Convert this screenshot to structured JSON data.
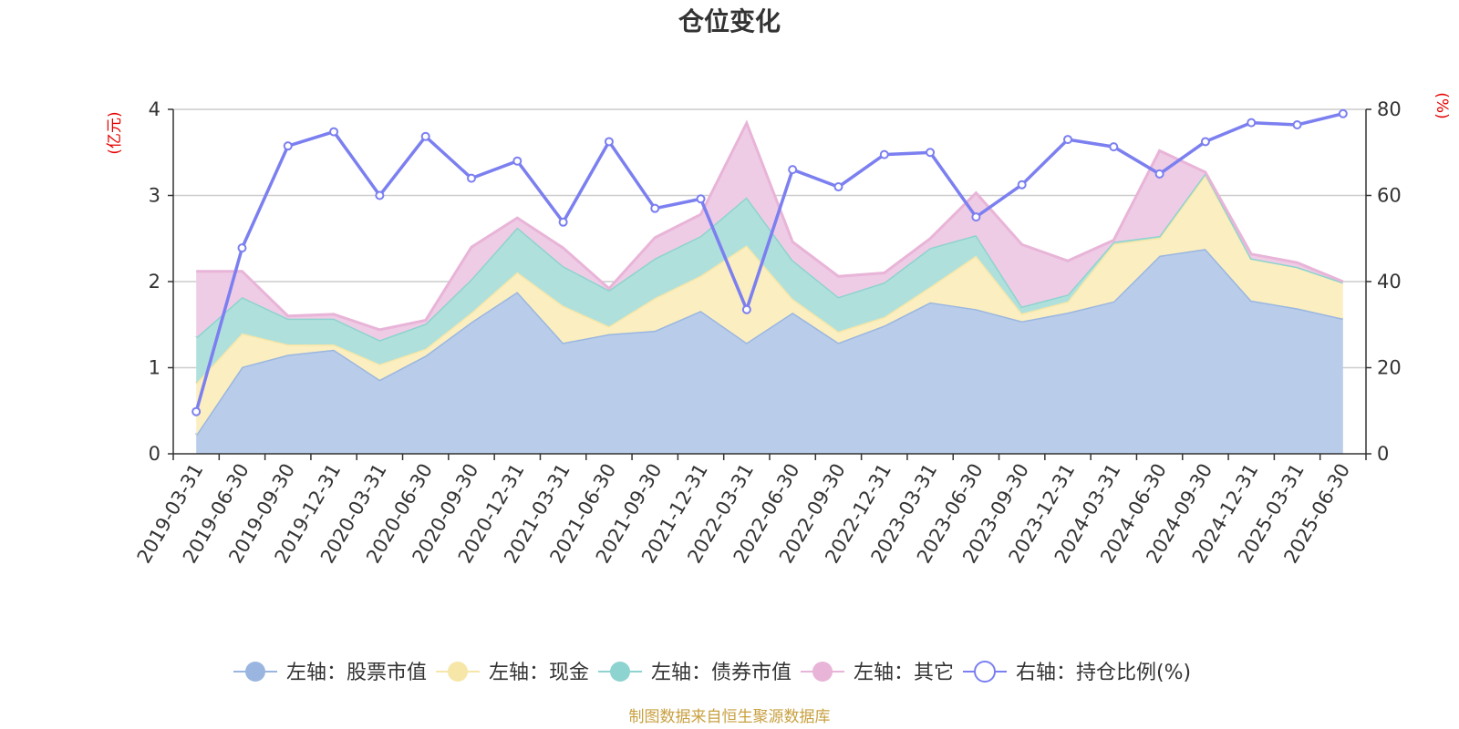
{
  "chart_data": {
    "type": "area",
    "title": "仓位变化",
    "footer": "制图数据来自恒生聚源数据库",
    "left_axis": {
      "unit": "(亿元)",
      "ylim": [
        0,
        4
      ],
      "ticks": [
        "0",
        "1",
        "2",
        "3",
        "4"
      ]
    },
    "right_axis": {
      "unit": "(%)",
      "ylim": [
        0,
        80
      ],
      "ticks": [
        "0",
        "20",
        "40",
        "60",
        "80"
      ]
    },
    "categories": [
      "2019-03-31",
      "2019-06-30",
      "2019-09-30",
      "2019-12-31",
      "2020-03-31",
      "2020-06-30",
      "2020-09-30",
      "2020-12-31",
      "2021-03-31",
      "2021-06-30",
      "2021-09-30",
      "2021-12-31",
      "2022-03-31",
      "2022-06-30",
      "2022-09-30",
      "2022-12-31",
      "2023-03-31",
      "2023-06-30",
      "2023-09-30",
      "2023-12-31",
      "2024-03-31",
      "2024-06-30",
      "2024-09-30",
      "2024-12-31",
      "2025-03-31",
      "2025-06-30"
    ],
    "stacked_series": [
      {
        "name": "左轴：股票市值",
        "color": "#9ab6e0",
        "fill": "#b9cdea",
        "values": [
          0.22,
          1.01,
          1.15,
          1.21,
          0.86,
          1.14,
          1.53,
          1.88,
          1.29,
          1.39,
          1.43,
          1.66,
          1.29,
          1.64,
          1.29,
          1.49,
          1.76,
          1.68,
          1.54,
          1.64,
          1.77,
          2.3,
          2.38,
          1.78,
          1.69,
          1.57
        ]
      },
      {
        "name": "左轴：现金",
        "color": "#f6e6a8",
        "fill": "#fbeec0",
        "values": [
          0.6,
          0.39,
          0.12,
          0.06,
          0.18,
          0.08,
          0.11,
          0.23,
          0.43,
          0.09,
          0.38,
          0.41,
          1.13,
          0.16,
          0.13,
          0.1,
          0.18,
          0.62,
          0.09,
          0.13,
          0.67,
          0.21,
          0.86,
          0.49,
          0.48,
          0.42
        ]
      },
      {
        "name": "左轴：债券市值",
        "color": "#8dd3cf",
        "fill": "#b0e0dc",
        "values": [
          0.53,
          0.42,
          0.3,
          0.3,
          0.28,
          0.29,
          0.39,
          0.52,
          0.46,
          0.42,
          0.46,
          0.46,
          0.56,
          0.45,
          0.4,
          0.4,
          0.45,
          0.24,
          0.08,
          0.08,
          0.02,
          0.02,
          0.02,
          0.0,
          0.0,
          0.0
        ]
      },
      {
        "name": "左轴：其它",
        "color": "#e8b4d8",
        "fill": "#efcce5",
        "values": [
          0.77,
          0.3,
          0.03,
          0.05,
          0.12,
          0.04,
          0.37,
          0.11,
          0.21,
          0.02,
          0.24,
          0.25,
          0.86,
          0.21,
          0.24,
          0.11,
          0.11,
          0.49,
          0.72,
          0.39,
          0.02,
          0.99,
          0.01,
          0.05,
          0.05,
          0.01
        ]
      }
    ],
    "line_series": {
      "name": "右轴：持仓比例(%)",
      "color": "#7b7ff0",
      "axis": "right",
      "values": [
        9.8,
        47.8,
        71.5,
        74.8,
        60.0,
        73.7,
        64.0,
        68.0,
        53.8,
        72.5,
        57.0,
        59.2,
        33.5,
        66.0,
        62.0,
        69.5,
        70.0,
        55.0,
        62.5,
        73.0,
        71.3,
        65.0,
        72.5,
        76.9,
        76.4,
        79.0
      ]
    },
    "legend_position": "bottom-center",
    "grid": true
  }
}
